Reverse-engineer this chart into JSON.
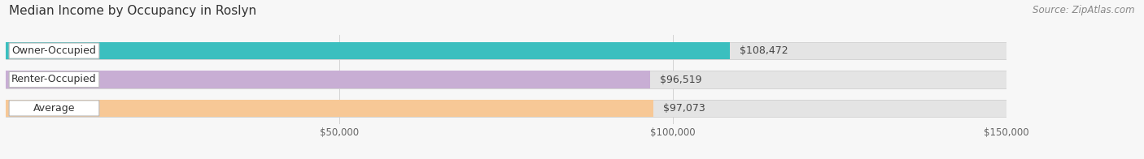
{
  "title": "Median Income by Occupancy in Roslyn",
  "source": "Source: ZipAtlas.com",
  "categories": [
    "Owner-Occupied",
    "Renter-Occupied",
    "Average"
  ],
  "values": [
    108472,
    96519,
    97073
  ],
  "labels": [
    "$108,472",
    "$96,519",
    "$97,073"
  ],
  "bar_colors": [
    "#3bbfbf",
    "#c8aed4",
    "#f7c896"
  ],
  "xlim": [
    0,
    150000
  ],
  "xticks": [
    50000,
    100000,
    150000
  ],
  "xticklabels": [
    "$50,000",
    "$100,000",
    "$150,000"
  ],
  "title_fontsize": 11,
  "source_fontsize": 8.5,
  "bar_label_fontsize": 9,
  "category_fontsize": 9,
  "background_color": "#f7f7f7",
  "bar_bg_color": "#e4e4e4",
  "bar_edge_color": "#d0d0d0"
}
